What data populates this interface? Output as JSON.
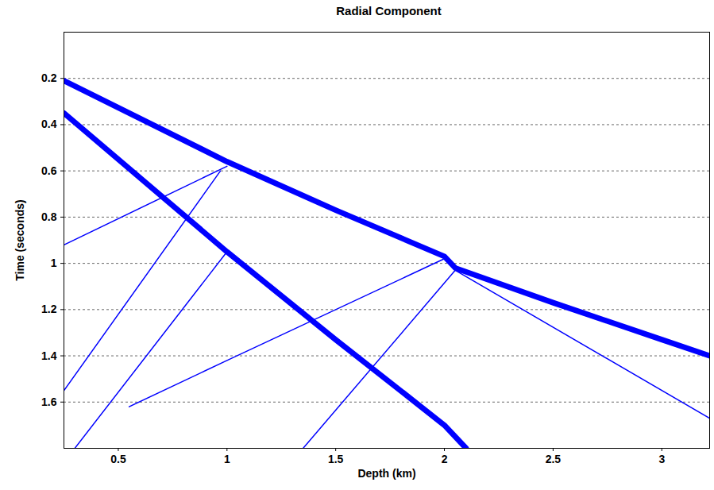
{
  "chart_data": {
    "type": "line",
    "title": "Radial Component",
    "x_label": "Depth (km)",
    "y_label": "Time (seconds)",
    "xlim": [
      0.25,
      3.22
    ],
    "ylim": [
      0,
      1.8
    ],
    "xticks": [
      0.5,
      1,
      1.5,
      2,
      2.5,
      3
    ],
    "yticks": [
      0.2,
      0.4,
      0.6,
      0.8,
      1,
      1.2,
      1.4,
      1.6
    ],
    "grid": "y",
    "series": [
      {
        "color": "#0000ff",
        "line_style": "solid",
        "x": [
          0.25,
          1.0,
          1.5,
          2.0,
          2.05,
          2.5,
          3.0,
          3.22
        ],
        "values": [
          0.21,
          0.56,
          0.77,
          0.97,
          1.02,
          1.17,
          1.33,
          1.4
        ]
      },
      {
        "color": "#0000ff",
        "line_style": "solid",
        "x": [
          0.25,
          1.0,
          1.5,
          2.0,
          2.1
        ],
        "values": [
          0.35,
          0.95,
          1.33,
          1.7,
          1.8
        ]
      },
      {
        "color": "#0000ff",
        "line_style": "solid",
        "x": [
          1.0,
          0.25
        ],
        "values": [
          0.58,
          0.92
        ]
      },
      {
        "color": "#0000ff",
        "line_style": "solid",
        "x": [
          0.97,
          0.25
        ],
        "values": [
          0.6,
          1.55
        ]
      },
      {
        "color": "#0000ff",
        "line_style": "solid",
        "x": [
          1.0,
          0.3
        ],
        "values": [
          0.95,
          1.8
        ]
      },
      {
        "color": "#0000ff",
        "line_style": "solid",
        "x": [
          2.0,
          1.0,
          0.55
        ],
        "values": [
          0.98,
          1.42,
          1.62
        ]
      },
      {
        "color": "#0000ff",
        "line_style": "solid",
        "x": [
          2.05,
          1.35
        ],
        "values": [
          1.03,
          1.8
        ]
      },
      {
        "color": "#0000ff",
        "line_style": "solid",
        "x": [
          2.05,
          3.22
        ],
        "values": [
          1.03,
          1.67
        ]
      }
    ]
  }
}
